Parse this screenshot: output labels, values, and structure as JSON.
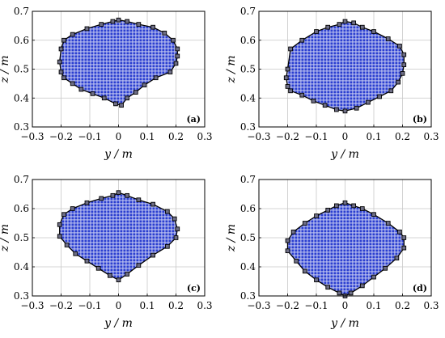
{
  "chart_data": [
    {
      "type": "scatter",
      "panel_label": "(a)",
      "xlabel": "y / m",
      "ylabel": "z / m",
      "xlim": [
        -0.3,
        0.3
      ],
      "ylim": [
        0.3,
        0.7
      ],
      "xticks": [
        "−0.3",
        "−0.2",
        "−0.1",
        "0",
        "0.1",
        "0.2",
        "0.3"
      ],
      "yticks": [
        "0.3",
        "0.4",
        "0.5",
        "0.6",
        "0.7"
      ],
      "grid": true,
      "boundary": [
        [
          -0.2,
          0.57
        ],
        [
          -0.19,
          0.6
        ],
        [
          -0.16,
          0.62
        ],
        [
          -0.11,
          0.64
        ],
        [
          -0.06,
          0.655
        ],
        [
          -0.02,
          0.665
        ],
        [
          0.0,
          0.67
        ],
        [
          0.03,
          0.665
        ],
        [
          0.07,
          0.655
        ],
        [
          0.12,
          0.645
        ],
        [
          0.16,
          0.625
        ],
        [
          0.19,
          0.6
        ],
        [
          0.205,
          0.57
        ],
        [
          0.205,
          0.545
        ],
        [
          0.2,
          0.52
        ],
        [
          0.18,
          0.49
        ],
        [
          0.13,
          0.47
        ],
        [
          0.09,
          0.445
        ],
        [
          0.06,
          0.42
        ],
        [
          0.03,
          0.4
        ],
        [
          0.01,
          0.375
        ],
        [
          -0.01,
          0.38
        ],
        [
          -0.05,
          0.4
        ],
        [
          -0.09,
          0.415
        ],
        [
          -0.13,
          0.43
        ],
        [
          -0.16,
          0.45
        ],
        [
          -0.19,
          0.47
        ],
        [
          -0.2,
          0.49
        ],
        [
          -0.205,
          0.525
        ]
      ]
    },
    {
      "type": "scatter",
      "panel_label": "(b)",
      "xlabel": "y / m",
      "ylabel": "z / m",
      "xlim": [
        -0.3,
        0.3
      ],
      "ylim": [
        0.3,
        0.7
      ],
      "xticks": [
        "−0.3",
        "−0.2",
        "−0.1",
        "0",
        "0.1",
        "0.2",
        "0.3"
      ],
      "yticks": [
        "0.3",
        "0.4",
        "0.5",
        "0.6",
        "0.7"
      ],
      "grid": true,
      "boundary": [
        [
          -0.2,
          0.5
        ],
        [
          -0.19,
          0.57
        ],
        [
          -0.15,
          0.6
        ],
        [
          -0.1,
          0.63
        ],
        [
          -0.06,
          0.645
        ],
        [
          -0.02,
          0.655
        ],
        [
          0.0,
          0.665
        ],
        [
          0.03,
          0.66
        ],
        [
          0.06,
          0.645
        ],
        [
          0.1,
          0.63
        ],
        [
          0.15,
          0.605
        ],
        [
          0.19,
          0.58
        ],
        [
          0.205,
          0.55
        ],
        [
          0.205,
          0.515
        ],
        [
          0.2,
          0.485
        ],
        [
          0.185,
          0.455
        ],
        [
          0.16,
          0.425
        ],
        [
          0.12,
          0.405
        ],
        [
          0.08,
          0.385
        ],
        [
          0.04,
          0.365
        ],
        [
          0.0,
          0.355
        ],
        [
          -0.03,
          0.36
        ],
        [
          -0.07,
          0.375
        ],
        [
          -0.11,
          0.39
        ],
        [
          -0.15,
          0.41
        ],
        [
          -0.19,
          0.425
        ],
        [
          -0.2,
          0.44
        ],
        [
          -0.205,
          0.47
        ]
      ]
    },
    {
      "type": "scatter",
      "panel_label": "(c)",
      "xlabel": "y / m",
      "ylabel": "z / m",
      "xlim": [
        -0.3,
        0.3
      ],
      "ylim": [
        0.3,
        0.7
      ],
      "xticks": [
        "−0.3",
        "−0.2",
        "−0.1",
        "0",
        "0.1",
        "0.2",
        "0.3"
      ],
      "yticks": [
        "0.3",
        "0.4",
        "0.5",
        "0.6",
        "0.7"
      ],
      "grid": true,
      "boundary": [
        [
          -0.205,
          0.545
        ],
        [
          -0.19,
          0.58
        ],
        [
          -0.16,
          0.6
        ],
        [
          -0.11,
          0.62
        ],
        [
          -0.06,
          0.635
        ],
        [
          -0.02,
          0.645
        ],
        [
          0.0,
          0.655
        ],
        [
          0.03,
          0.645
        ],
        [
          0.07,
          0.63
        ],
        [
          0.12,
          0.615
        ],
        [
          0.17,
          0.59
        ],
        [
          0.195,
          0.565
        ],
        [
          0.205,
          0.53
        ],
        [
          0.2,
          0.5
        ],
        [
          0.17,
          0.47
        ],
        [
          0.12,
          0.44
        ],
        [
          0.07,
          0.405
        ],
        [
          0.03,
          0.375
        ],
        [
          0.0,
          0.355
        ],
        [
          -0.03,
          0.37
        ],
        [
          -0.07,
          0.395
        ],
        [
          -0.11,
          0.42
        ],
        [
          -0.15,
          0.445
        ],
        [
          -0.18,
          0.475
        ],
        [
          -0.205,
          0.505
        ]
      ]
    },
    {
      "type": "scatter",
      "panel_label": "(d)",
      "xlabel": "y / m",
      "ylabel": "z / m",
      "xlim": [
        -0.3,
        0.3
      ],
      "ylim": [
        0.3,
        0.7
      ],
      "xticks": [
        "−0.3",
        "−0.2",
        "−0.1",
        "0",
        "0.1",
        "0.2",
        "0.3"
      ],
      "yticks": [
        "0.3",
        "0.4",
        "0.5",
        "0.6",
        "0.7"
      ],
      "grid": true,
      "boundary": [
        [
          -0.2,
          0.49
        ],
        [
          -0.18,
          0.52
        ],
        [
          -0.14,
          0.55
        ],
        [
          -0.1,
          0.575
        ],
        [
          -0.06,
          0.595
        ],
        [
          -0.03,
          0.61
        ],
        [
          0.0,
          0.62
        ],
        [
          0.03,
          0.61
        ],
        [
          0.06,
          0.6
        ],
        [
          0.1,
          0.58
        ],
        [
          0.15,
          0.55
        ],
        [
          0.19,
          0.52
        ],
        [
          0.205,
          0.5
        ],
        [
          0.205,
          0.465
        ],
        [
          0.18,
          0.43
        ],
        [
          0.14,
          0.395
        ],
        [
          0.1,
          0.365
        ],
        [
          0.06,
          0.335
        ],
        [
          0.02,
          0.31
        ],
        [
          0.0,
          0.3
        ],
        [
          -0.02,
          0.31
        ],
        [
          -0.06,
          0.33
        ],
        [
          -0.1,
          0.355
        ],
        [
          -0.14,
          0.385
        ],
        [
          -0.17,
          0.42
        ],
        [
          -0.2,
          0.455
        ]
      ]
    }
  ],
  "colors": {
    "fill_dot": "#2b3fd0",
    "fill_background": "#c9cdf3",
    "boundary_line": "#000000",
    "marker_fill": "#6f6f86",
    "grid": "#c8c8c8"
  }
}
